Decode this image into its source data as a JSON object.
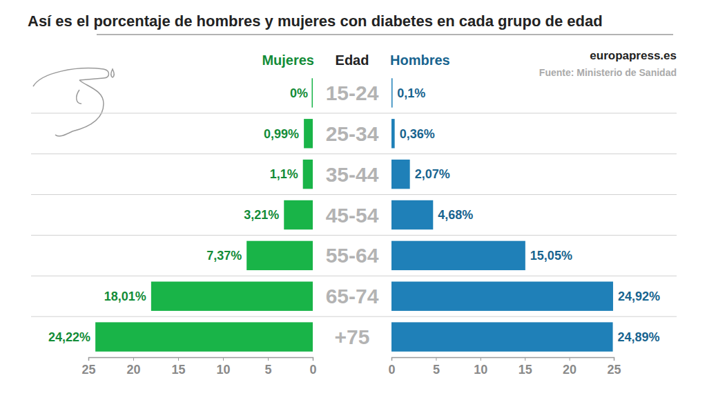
{
  "chart_data": {
    "type": "bar",
    "orientation": "horizontal",
    "title": "Así es el porcentaje de hombres y mujeres con diabetes en cada grupo de edad",
    "annotations": [
      "europapress.es",
      "Fuente: Ministerio de Sanidad"
    ],
    "y_label": "Edad",
    "categories": [
      "15-24",
      "25-34",
      "35-44",
      "45-54",
      "55-64",
      "65-74",
      "+75"
    ],
    "series": [
      {
        "name": "Mujeres",
        "color": "#19b448",
        "values": [
          0,
          0.99,
          1.1,
          3.21,
          7.37,
          18.01,
          24.22
        ],
        "value_labels": [
          "0%",
          "0,99%",
          "1,1%",
          "3,21%",
          "7,37%",
          "18,01%",
          "24,22%"
        ]
      },
      {
        "name": "Hombres",
        "color": "#1f80b8",
        "values": [
          0.1,
          0.36,
          2.07,
          4.68,
          15.05,
          24.92,
          24.89
        ],
        "value_labels": [
          "0,1%",
          "0,36%",
          "2,07%",
          "4,68%",
          "15,05%",
          "24,92%",
          "24,89%"
        ]
      }
    ],
    "xlim": [
      0,
      25
    ],
    "xticks": [
      0,
      5,
      10,
      15,
      20,
      25
    ],
    "data_labels": true
  }
}
